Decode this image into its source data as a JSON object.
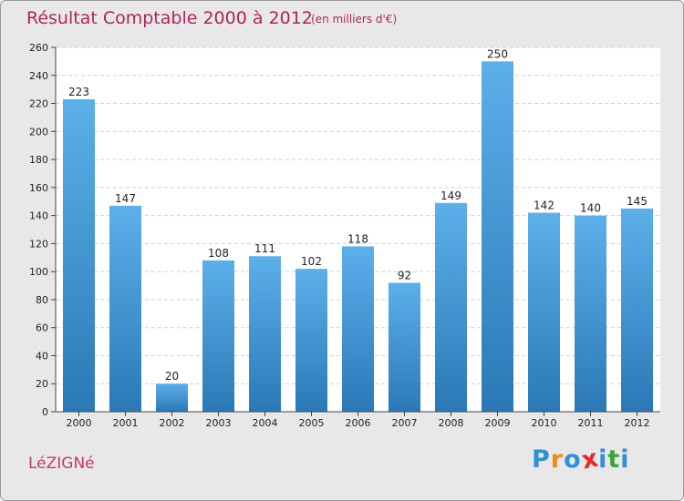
{
  "header": {
    "title": "Résultat Comptable 2000 à 2012",
    "subtitle": "(en milliers d'€)"
  },
  "footer": {
    "commune": "LéZIGNé",
    "logo": "Proxiti",
    "logo_letters": [
      "P",
      "r",
      "o",
      "x",
      "i",
      "t",
      "i"
    ],
    "logo_colors": [
      "#2f8fd8",
      "#f08a1c",
      "#2f8fd8",
      "#e8262a",
      "#2f8fd8",
      "#3aa63a",
      "#2f8fd8"
    ]
  },
  "colors": {
    "bar_top": "#5cb0ea",
    "bar_bottom": "#2a79b6",
    "title": "#b0245e"
  },
  "chart_data": {
    "type": "bar",
    "title": "Résultat Comptable 2000 à 2012",
    "subtitle": "(en milliers d'€)",
    "xlabel": "",
    "ylabel": "",
    "categories": [
      "2000",
      "2001",
      "2002",
      "2003",
      "2004",
      "2005",
      "2006",
      "2007",
      "2008",
      "2009",
      "2010",
      "2011",
      "2012"
    ],
    "values": [
      223,
      147,
      20,
      108,
      111,
      102,
      118,
      92,
      149,
      250,
      142,
      140,
      145
    ],
    "ylim": [
      0,
      260
    ],
    "yticks": [
      0,
      20,
      40,
      60,
      80,
      100,
      120,
      140,
      160,
      180,
      200,
      220,
      240,
      260
    ],
    "grid": true
  }
}
